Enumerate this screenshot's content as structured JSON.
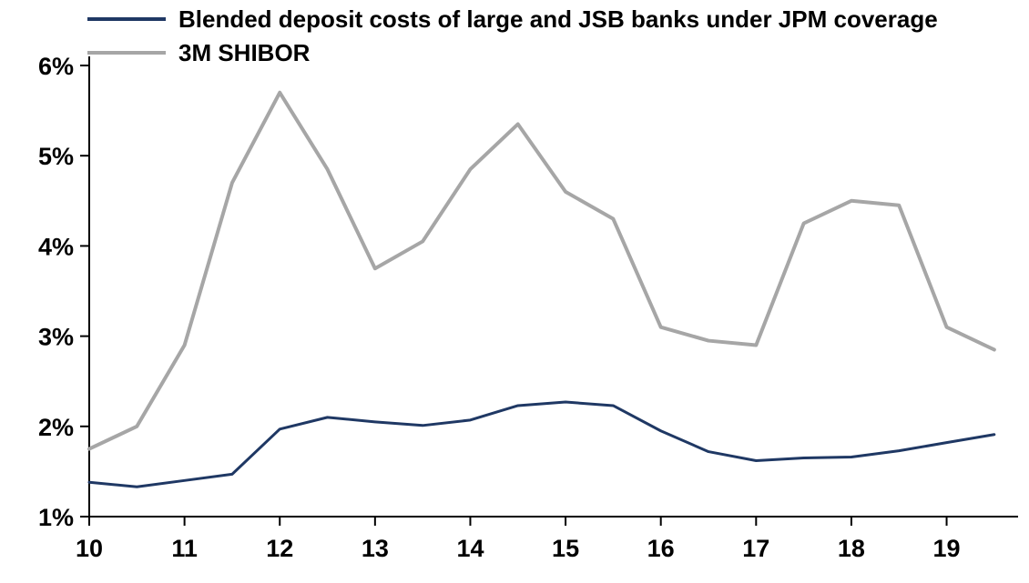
{
  "chart_data": {
    "type": "line",
    "x": [
      10,
      10.5,
      11,
      11.5,
      12,
      12.5,
      13,
      13.5,
      14,
      14.5,
      15,
      15.5,
      16,
      16.5,
      17,
      17.5,
      18,
      18.5,
      19,
      19.5
    ],
    "series": [
      {
        "name": "Blended deposit costs of large and JSB banks under JPM coverage",
        "color": "#1f3864",
        "values": [
          1.38,
          1.33,
          1.4,
          1.47,
          1.97,
          2.1,
          2.05,
          2.01,
          2.07,
          2.23,
          2.27,
          2.23,
          1.95,
          1.72,
          1.62,
          1.65,
          1.66,
          1.73,
          1.82,
          1.91
        ]
      },
      {
        "name": "3M SHIBOR",
        "color": "#a6a6a6",
        "values": [
          1.75,
          2.0,
          2.9,
          4.7,
          5.7,
          4.85,
          3.75,
          4.05,
          4.85,
          5.35,
          4.6,
          4.3,
          3.1,
          2.95,
          2.9,
          4.25,
          4.5,
          4.45,
          3.1,
          2.85
        ]
      }
    ],
    "xlim": [
      10,
      19.75
    ],
    "ylim": [
      1,
      6
    ],
    "x_tick_values": [
      10,
      11,
      12,
      13,
      14,
      15,
      16,
      17,
      18,
      19
    ],
    "x_tick_labels": [
      "10",
      "11",
      "12",
      "13",
      "14",
      "15",
      "16",
      "17",
      "18",
      "19"
    ],
    "y_tick_values": [
      1,
      2,
      3,
      4,
      5,
      6
    ],
    "y_tick_labels": [
      "1%",
      "2%",
      "3%",
      "4%",
      "5%",
      "6%"
    ],
    "grid": false,
    "legend_position": "top-left",
    "axis_color": "#000000",
    "background": "#ffffff"
  }
}
